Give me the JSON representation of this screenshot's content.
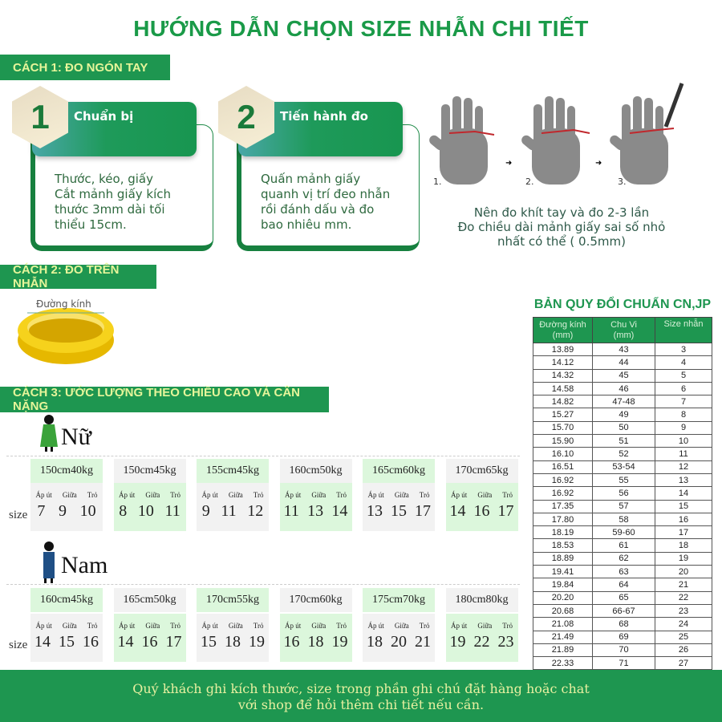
{
  "title": "HƯỚNG DẪN CHỌN SIZE NHẪN CHI TIẾT",
  "method1": {
    "label": "CÁCH 1: ĐO NGÓN TAY",
    "steps": [
      {
        "number": "1",
        "title": "Chuẩn bị",
        "lines": [
          "Thước, kéo, giấy",
          "Cắt mảnh giấy kích",
          "thước 3mm dài tối",
          "thiểu 15cm."
        ]
      },
      {
        "number": "2",
        "title": "Tiến hành đo",
        "lines": [
          "Quấn mảnh giấy",
          "quanh vị trí đeo nhẫn",
          "rồi đánh dấu và đo",
          "bao nhiêu mm."
        ]
      }
    ],
    "hand_labels": [
      "1.",
      "2.",
      "3."
    ],
    "notes": [
      "Nên đo khít tay và đo 2-3 lần",
      "Đo chiều dài mảnh giấy sai số nhỏ",
      "nhất có thể ( 0.5mm)"
    ]
  },
  "method2": {
    "label": "CÁCH 2: ĐO TRÊN NHẪN",
    "diameter_label": "Đường kính"
  },
  "method3": {
    "label": "CÁCH 3: ƯỚC LƯỢNG THEO CHIỀU CAO VÀ CÂN NẶNG",
    "size_label": "size",
    "finger_labels": [
      "Áp út",
      "Giữa",
      "Trỏ"
    ],
    "female": {
      "label": "Nữ",
      "groups": [
        {
          "height": "150cm",
          "weight": "40kg",
          "sizes": [
            "7",
            "9",
            "10"
          ]
        },
        {
          "height": "150cm",
          "weight": "45kg",
          "sizes": [
            "8",
            "10",
            "11"
          ]
        },
        {
          "height": "155cm",
          "weight": "45kg",
          "sizes": [
            "9",
            "11",
            "12"
          ]
        },
        {
          "height": "160cm",
          "weight": "50kg",
          "sizes": [
            "11",
            "13",
            "14"
          ]
        },
        {
          "height": "165cm",
          "weight": "60kg",
          "sizes": [
            "13",
            "15",
            "17"
          ]
        },
        {
          "height": "170cm",
          "weight": "65kg",
          "sizes": [
            "14",
            "16",
            "17"
          ]
        }
      ]
    },
    "male": {
      "label": "Nam",
      "groups": [
        {
          "height": "160cm",
          "weight": "45kg",
          "sizes": [
            "14",
            "15",
            "16"
          ]
        },
        {
          "height": "165cm",
          "weight": "50kg",
          "sizes": [
            "14",
            "16",
            "17"
          ]
        },
        {
          "height": "170cm",
          "weight": "55kg",
          "sizes": [
            "15",
            "18",
            "19"
          ]
        },
        {
          "height": "170cm",
          "weight": "60kg",
          "sizes": [
            "16",
            "18",
            "19"
          ]
        },
        {
          "height": "175cm",
          "weight": "70kg",
          "sizes": [
            "18",
            "20",
            "21"
          ]
        },
        {
          "height": "180cm",
          "weight": "80kg",
          "sizes": [
            "19",
            "22",
            "23"
          ]
        }
      ]
    }
  },
  "conversion": {
    "title": "BẢN QUY ĐỔI CHUẨN CN,JP",
    "headers": [
      [
        "Đường kính",
        "(mm)"
      ],
      [
        "Chu Vi",
        "(mm)"
      ],
      [
        "Size nhẫn",
        ""
      ]
    ],
    "rows": [
      [
        "13.89",
        "43",
        "3"
      ],
      [
        "14.12",
        "44",
        "4"
      ],
      [
        "14.32",
        "45",
        "5"
      ],
      [
        "14.58",
        "46",
        "6"
      ],
      [
        "14.82",
        "47-48",
        "7"
      ],
      [
        "15.27",
        "49",
        "8"
      ],
      [
        "15.70",
        "50",
        "9"
      ],
      [
        "15.90",
        "51",
        "10"
      ],
      [
        "16.10",
        "52",
        "11"
      ],
      [
        "16.51",
        "53-54",
        "12"
      ],
      [
        "16.92",
        "55",
        "13"
      ],
      [
        "16.92",
        "56",
        "14"
      ],
      [
        "17.35",
        "57",
        "15"
      ],
      [
        "17.80",
        "58",
        "16"
      ],
      [
        "18.19",
        "59-60",
        "17"
      ],
      [
        "18.53",
        "61",
        "18"
      ],
      [
        "18.89",
        "62",
        "19"
      ],
      [
        "19.41",
        "63",
        "20"
      ],
      [
        "19.84",
        "64",
        "21"
      ],
      [
        "20.20",
        "65",
        "22"
      ],
      [
        "20.68",
        "66-67",
        "23"
      ],
      [
        "21.08",
        "68",
        "24"
      ],
      [
        "21.49",
        "69",
        "25"
      ],
      [
        "21.89",
        "70",
        "26"
      ],
      [
        "22.33",
        "71",
        "27"
      ]
    ]
  },
  "footer": [
    "Quý khách ghi kích thước, size trong phần ghi chú đặt hàng hoặc chat",
    "với shop để hỏi thêm chi tiết nếu cần."
  ],
  "colors": {
    "brand_green": "#1e9650",
    "label_yellow": "#e6f59a",
    "cell_green": "#dcf7dc",
    "cell_gray": "#f2f2f2"
  }
}
